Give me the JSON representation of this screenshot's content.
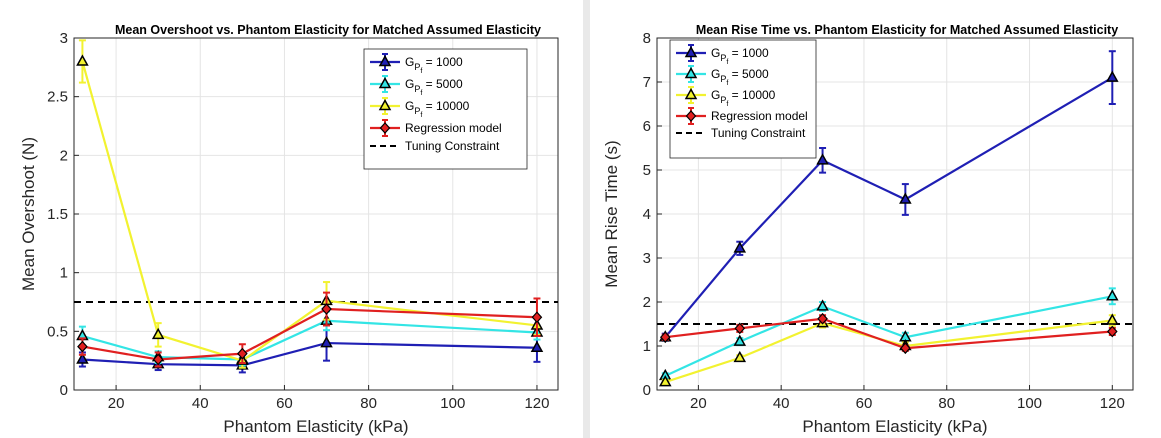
{
  "chart_data": [
    {
      "type": "line",
      "title": "Mean Overshoot vs. Phantom Elasticity for Matched Assumed Elasticity",
      "xlabel": "Phantom Elasticity (kPa)",
      "ylabel": "Mean Overshoot (N)",
      "xlim": [
        10,
        125
      ],
      "ylim": [
        0,
        3
      ],
      "xticks": [
        20,
        40,
        60,
        80,
        100,
        120
      ],
      "yticks": [
        0,
        0.5,
        1,
        1.5,
        2,
        2.5,
        3
      ],
      "grid": true,
      "legend_position": "top-right",
      "reference_line": {
        "label": "Tuning Constraint",
        "value": 0.75,
        "color": "#000000"
      },
      "x": [
        12,
        30,
        50,
        70,
        120
      ],
      "series": [
        {
          "name": "G_Pf = 1000",
          "name_main": "G",
          "name_sub1": "P",
          "name_sub2": "f",
          "name_value": " = 1000",
          "color": "#1f1fb4",
          "marker": "triangle",
          "values": [
            0.26,
            0.22,
            0.21,
            0.4,
            0.36
          ],
          "errors": [
            0.06,
            0.05,
            0.06,
            0.15,
            0.12
          ]
        },
        {
          "name": "G_Pf = 5000",
          "name_main": "G",
          "name_sub1": "P",
          "name_sub2": "f",
          "name_value": " = 5000",
          "color": "#33e5e5",
          "marker": "triangle",
          "values": [
            0.46,
            0.28,
            0.26,
            0.59,
            0.49
          ],
          "errors": [
            0.08,
            0.05,
            0.05,
            0.08,
            0.06
          ]
        },
        {
          "name": "G_Pf = 10000",
          "name_main": "G",
          "name_sub1": "P",
          "name_sub2": "f",
          "name_value": " = 10000",
          "color": "#f2f230",
          "marker": "triangle",
          "values": [
            2.8,
            0.47,
            0.25,
            0.76,
            0.55
          ],
          "errors": [
            0.18,
            0.1,
            0.06,
            0.16,
            0.08
          ]
        },
        {
          "name": "Regression model",
          "name_main": "Regression model",
          "name_sub1": "",
          "name_sub2": "",
          "name_value": "",
          "color": "#e02020",
          "marker": "diamond",
          "values": [
            0.37,
            0.26,
            0.31,
            0.69,
            0.62
          ],
          "errors": [
            0.07,
            0.06,
            0.08,
            0.14,
            0.16
          ]
        }
      ]
    },
    {
      "type": "line",
      "title": "Mean Rise Time vs. Phantom Elasticity for Matched Assumed Elasticity",
      "xlabel": "Phantom Elasticity (kPa)",
      "ylabel": "Mean Rise Time (s)",
      "xlim": [
        10,
        125
      ],
      "ylim": [
        0,
        8
      ],
      "xticks": [
        20,
        40,
        60,
        80,
        100,
        120
      ],
      "yticks": [
        0,
        1,
        2,
        3,
        4,
        5,
        6,
        7,
        8
      ],
      "grid": true,
      "legend_position": "top-left",
      "reference_line": {
        "label": "Tuning Constraint",
        "value": 1.5,
        "color": "#000000"
      },
      "x": [
        12,
        30,
        50,
        70,
        120
      ],
      "series": [
        {
          "name": "G_Pf = 1000",
          "name_main": "G",
          "name_sub1": "P",
          "name_sub2": "f",
          "name_value": " = 1000",
          "color": "#1f1fb4",
          "marker": "triangle",
          "values": [
            1.2,
            3.22,
            5.22,
            4.33,
            7.1
          ],
          "errors": [
            0.08,
            0.15,
            0.28,
            0.35,
            0.6
          ]
        },
        {
          "name": "G_Pf = 5000",
          "name_main": "G",
          "name_sub1": "P",
          "name_sub2": "f",
          "name_value": " = 5000",
          "color": "#33e5e5",
          "marker": "triangle",
          "values": [
            0.32,
            1.1,
            1.9,
            1.2,
            2.13
          ],
          "errors": [
            0.06,
            0.08,
            0.1,
            0.1,
            0.18
          ]
        },
        {
          "name": "G_Pf = 10000",
          "name_main": "G",
          "name_sub1": "P",
          "name_sub2": "f",
          "name_value": " = 10000",
          "color": "#f2f230",
          "marker": "triangle",
          "values": [
            0.18,
            0.73,
            1.52,
            1.0,
            1.58
          ],
          "errors": [
            0.05,
            0.06,
            0.1,
            0.08,
            0.12
          ]
        },
        {
          "name": "Regression model",
          "name_main": "Regression model",
          "name_sub1": "",
          "name_sub2": "",
          "name_value": "",
          "color": "#e02020",
          "marker": "diamond",
          "values": [
            1.2,
            1.4,
            1.62,
            0.95,
            1.33
          ],
          "errors": [
            0.06,
            0.08,
            0.08,
            0.06,
            0.08
          ]
        }
      ]
    }
  ]
}
